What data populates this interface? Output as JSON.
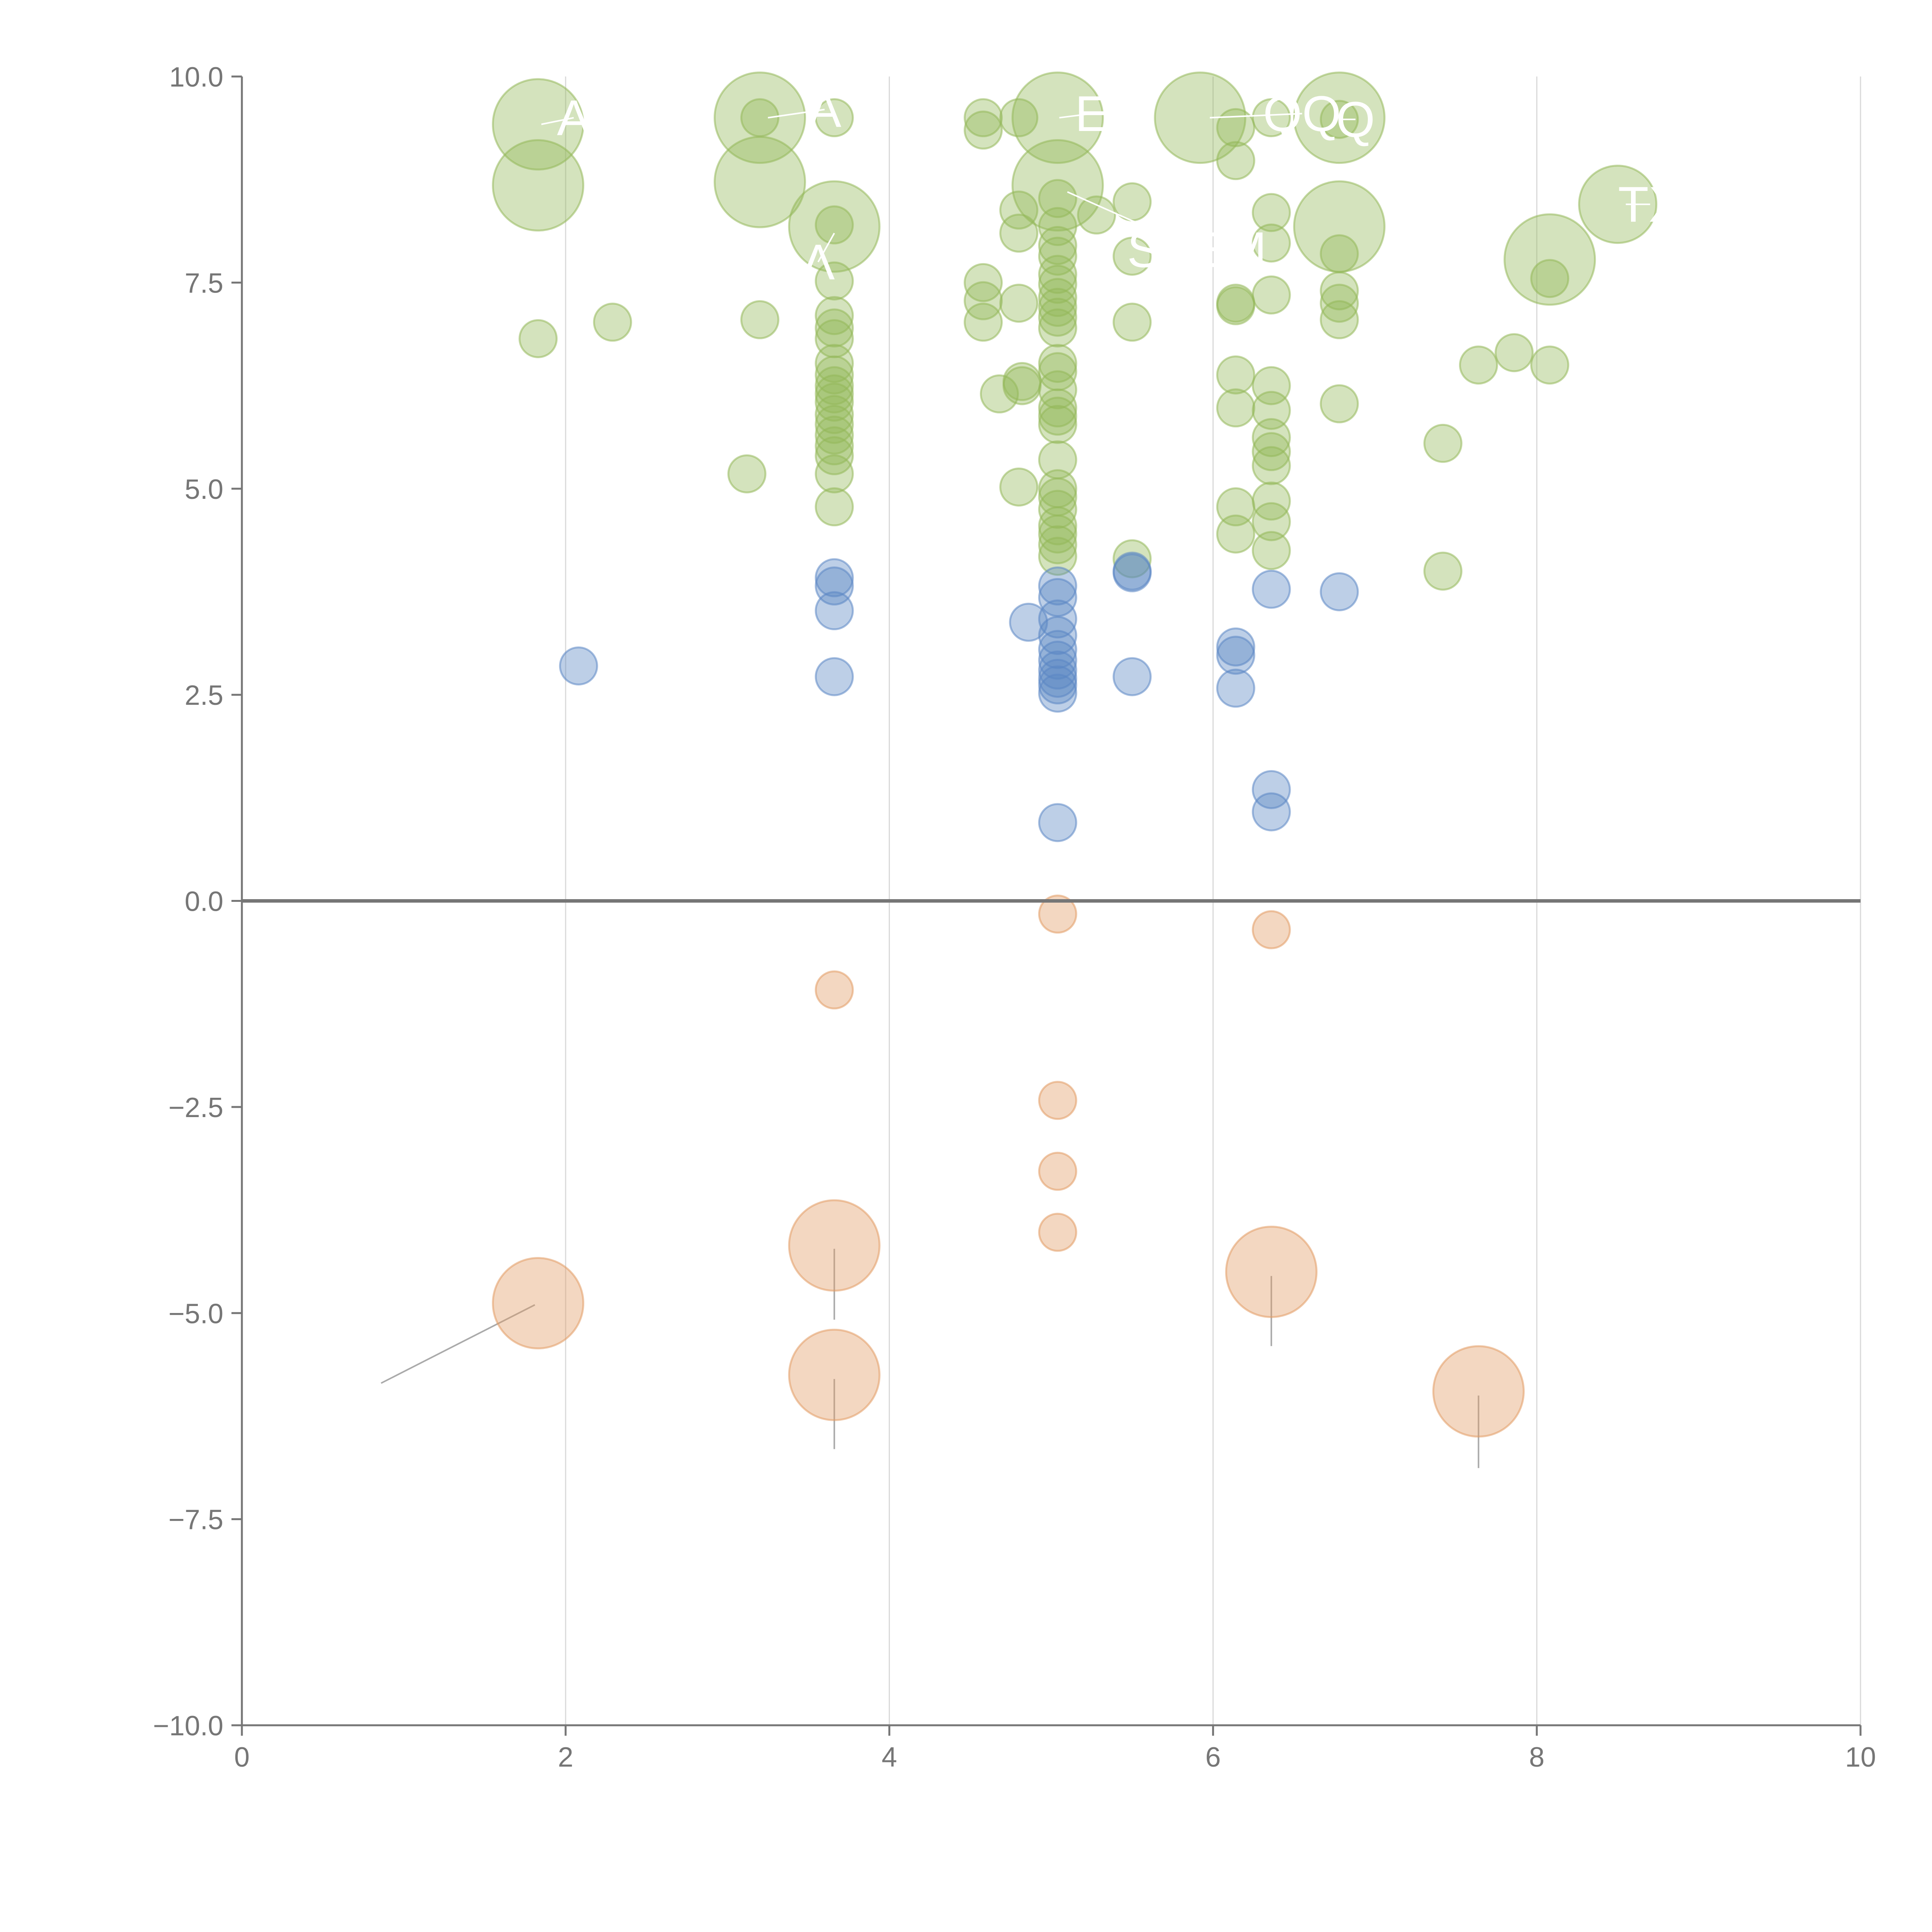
{
  "colors": {
    "green": "#93b85a",
    "blue": "#5b86c4",
    "orange": "#e29a63",
    "axis": "#767676",
    "grid": "#d9d9d9",
    "leader": "#aaaaaa"
  },
  "chart_data": {
    "type": "scatter",
    "title": "",
    "xlabel": "",
    "ylabel": "",
    "xlim": [
      0,
      10
    ],
    "ylim": [
      -10,
      10
    ],
    "x_ticks": [
      0,
      2,
      4,
      6,
      8,
      10
    ],
    "x_tick_labels": [
      "0",
      "2",
      "4",
      "6",
      "8",
      "10"
    ],
    "y_ticks": [
      -10,
      -7.5,
      -5,
      -2.5,
      0,
      2.5,
      5,
      7.5,
      10
    ],
    "y_tick_labels": [
      "−10.0",
      "−7.5",
      "−5.0",
      "−2.5",
      "0.0",
      "2.5",
      "5.0",
      "7.5",
      "10.0"
    ],
    "grid": "vertical",
    "zero_line": 0,
    "legend": "none",
    "series": [
      {
        "name": "green",
        "color_key": "green",
        "points": [
          [
            1.83,
            9.42,
            3
          ],
          [
            1.83,
            8.68,
            3
          ],
          [
            1.83,
            6.82,
            1
          ],
          [
            2.29,
            7.02,
            1
          ],
          [
            3.2,
            9.5,
            3
          ],
          [
            3.2,
            9.5,
            1
          ],
          [
            3.2,
            8.72,
            3
          ],
          [
            3.2,
            7.05,
            1
          ],
          [
            3.12,
            5.18,
            1
          ],
          [
            3.66,
            9.5,
            1
          ],
          [
            3.66,
            8.18,
            3
          ],
          [
            3.66,
            8.2,
            1
          ],
          [
            3.66,
            7.52,
            1
          ],
          [
            3.66,
            7.1,
            1
          ],
          [
            3.66,
            6.95,
            1
          ],
          [
            3.66,
            6.82,
            1
          ],
          [
            3.66,
            6.52,
            1
          ],
          [
            3.66,
            6.38,
            1
          ],
          [
            3.66,
            6.25,
            1
          ],
          [
            3.66,
            6.15,
            1
          ],
          [
            3.66,
            6.05,
            1
          ],
          [
            3.66,
            5.9,
            1
          ],
          [
            3.66,
            5.78,
            1
          ],
          [
            3.66,
            5.65,
            1
          ],
          [
            3.66,
            5.52,
            1
          ],
          [
            3.66,
            5.4,
            1
          ],
          [
            3.66,
            5.18,
            1
          ],
          [
            3.66,
            4.78,
            1
          ],
          [
            4.58,
            9.5,
            1
          ],
          [
            4.58,
            9.35,
            1
          ],
          [
            4.58,
            7.5,
            1
          ],
          [
            4.58,
            7.28,
            1
          ],
          [
            4.58,
            7.02,
            1
          ],
          [
            4.68,
            6.15,
            1
          ],
          [
            4.8,
            9.5,
            1
          ],
          [
            4.8,
            8.38,
            1
          ],
          [
            4.8,
            8.1,
            1
          ],
          [
            4.8,
            7.25,
            1
          ],
          [
            4.82,
            6.3,
            1
          ],
          [
            4.82,
            6.25,
            1
          ],
          [
            4.8,
            5.02,
            1
          ],
          [
            5.04,
            9.5,
            3
          ],
          [
            5.04,
            8.68,
            3
          ],
          [
            5.04,
            8.52,
            1
          ],
          [
            5.04,
            8.18,
            1
          ],
          [
            5.04,
            7.95,
            1
          ],
          [
            5.04,
            7.82,
            1
          ],
          [
            5.04,
            7.6,
            1
          ],
          [
            5.04,
            7.48,
            1
          ],
          [
            5.04,
            7.32,
            1
          ],
          [
            5.04,
            7.2,
            1
          ],
          [
            5.04,
            7.08,
            1
          ],
          [
            5.04,
            6.95,
            1
          ],
          [
            5.04,
            6.52,
            1
          ],
          [
            5.04,
            6.42,
            1
          ],
          [
            5.04,
            6.2,
            1
          ],
          [
            5.04,
            5.98,
            1
          ],
          [
            5.04,
            5.88,
            1
          ],
          [
            5.04,
            5.78,
            1
          ],
          [
            5.04,
            5.35,
            1
          ],
          [
            5.04,
            5.0,
            1
          ],
          [
            5.04,
            4.9,
            1
          ],
          [
            5.04,
            4.75,
            1
          ],
          [
            5.04,
            4.55,
            1
          ],
          [
            5.04,
            4.45,
            1
          ],
          [
            5.04,
            4.32,
            1
          ],
          [
            5.04,
            4.18,
            1
          ],
          [
            5.28,
            8.32,
            1
          ],
          [
            5.5,
            8.48,
            1
          ],
          [
            5.5,
            7.82,
            1
          ],
          [
            5.5,
            7.02,
            1
          ],
          [
            5.5,
            4.15,
            1
          ],
          [
            5.92,
            9.5,
            3
          ],
          [
            6.14,
            9.38,
            1
          ],
          [
            6.14,
            8.98,
            1
          ],
          [
            6.14,
            7.25,
            1
          ],
          [
            6.14,
            7.22,
            1
          ],
          [
            6.14,
            6.38,
            1
          ],
          [
            6.14,
            5.98,
            1
          ],
          [
            6.14,
            4.78,
            1
          ],
          [
            6.14,
            4.45,
            1
          ],
          [
            6.36,
            9.5,
            1
          ],
          [
            6.36,
            8.35,
            1
          ],
          [
            6.36,
            7.98,
            1
          ],
          [
            6.36,
            7.35,
            1
          ],
          [
            6.36,
            6.25,
            1
          ],
          [
            6.36,
            5.95,
            1
          ],
          [
            6.36,
            5.62,
            1
          ],
          [
            6.36,
            5.45,
            1
          ],
          [
            6.36,
            5.28,
            1
          ],
          [
            6.36,
            4.85,
            1
          ],
          [
            6.36,
            4.6,
            1
          ],
          [
            6.36,
            4.25,
            1
          ],
          [
            6.78,
            9.5,
            3
          ],
          [
            6.78,
            9.48,
            1
          ],
          [
            6.78,
            8.18,
            3
          ],
          [
            6.78,
            7.85,
            1
          ],
          [
            6.78,
            7.4,
            1
          ],
          [
            6.78,
            7.25,
            1
          ],
          [
            6.78,
            7.05,
            1
          ],
          [
            6.78,
            6.03,
            1
          ],
          [
            7.42,
            5.55,
            1
          ],
          [
            7.42,
            4.0,
            1
          ],
          [
            7.64,
            6.5,
            1
          ],
          [
            7.86,
            6.65,
            1
          ],
          [
            8.08,
            7.78,
            3
          ],
          [
            8.08,
            7.55,
            1
          ],
          [
            8.08,
            6.5,
            1
          ],
          [
            8.5,
            8.45,
            2
          ]
        ]
      },
      {
        "name": "blue",
        "color_key": "blue",
        "points": [
          [
            2.08,
            2.85,
            1
          ],
          [
            3.66,
            3.92,
            1
          ],
          [
            3.66,
            3.82,
            1
          ],
          [
            3.66,
            3.52,
            1
          ],
          [
            3.66,
            2.72,
            1
          ],
          [
            4.86,
            3.38,
            1
          ],
          [
            5.04,
            3.82,
            1
          ],
          [
            5.04,
            3.68,
            1
          ],
          [
            5.04,
            3.42,
            1
          ],
          [
            5.04,
            3.22,
            1
          ],
          [
            5.04,
            3.05,
            1
          ],
          [
            5.04,
            2.92,
            1
          ],
          [
            5.04,
            2.8,
            1
          ],
          [
            5.04,
            2.7,
            1
          ],
          [
            5.04,
            2.62,
            1
          ],
          [
            5.04,
            2.52,
            1
          ],
          [
            5.04,
            0.95,
            1
          ],
          [
            5.5,
            4.0,
            1
          ],
          [
            5.5,
            3.98,
            1
          ],
          [
            5.5,
            2.72,
            1
          ],
          [
            6.14,
            3.08,
            1
          ],
          [
            6.14,
            2.98,
            1
          ],
          [
            6.14,
            2.58,
            1
          ],
          [
            6.36,
            3.78,
            1
          ],
          [
            6.36,
            1.35,
            1
          ],
          [
            6.36,
            1.08,
            1
          ],
          [
            6.78,
            3.75,
            1
          ]
        ]
      },
      {
        "name": "orange",
        "color_key": "orange",
        "points": [
          [
            1.83,
            -4.88,
            3
          ],
          [
            3.66,
            -1.08,
            1
          ],
          [
            3.66,
            -4.18,
            3
          ],
          [
            3.66,
            -5.75,
            3
          ],
          [
            5.04,
            -0.16,
            1
          ],
          [
            5.04,
            -2.42,
            1
          ],
          [
            5.04,
            -3.28,
            1
          ],
          [
            5.04,
            -4.02,
            1
          ],
          [
            6.36,
            -0.35,
            1
          ],
          [
            6.36,
            -4.5,
            3
          ],
          [
            7.64,
            -5.95,
            3
          ]
        ]
      }
    ],
    "annotations": [
      {
        "text": "A",
        "x": 2.05,
        "y": 9.5,
        "tx": 1.85,
        "ty": 9.42
      },
      {
        "text": "A",
        "x": 3.6,
        "y": 9.6,
        "tx": 3.25,
        "ty": 9.5
      },
      {
        "text": "E",
        "x": 5.25,
        "y": 9.55,
        "tx": 5.05,
        "ty": 9.5
      },
      {
        "text": "QQ",
        "x": 6.55,
        "y": 9.55,
        "tx": 5.98,
        "ty": 9.5
      },
      {
        "text": "Q",
        "x": 6.88,
        "y": 9.48,
        "tx": 6.8,
        "ty": 9.48
      },
      {
        "text": "TX",
        "x": 8.7,
        "y": 8.45,
        "tx": 8.55,
        "ty": 8.45
      },
      {
        "text": "STEM",
        "x": 5.9,
        "y": 7.9,
        "tx": 5.1,
        "ty": 8.6
      },
      {
        "text": "Λ",
        "x": 3.56,
        "y": 7.75,
        "tx": 3.66,
        "ty": 8.1
      }
    ],
    "leaders": [
      {
        "x1": 0.86,
        "y1": -5.85,
        "x2": 1.81,
        "y2": -4.9
      },
      {
        "x1": 3.66,
        "y1": -5.08,
        "x2": 3.66,
        "y2": -4.22
      },
      {
        "x1": 3.66,
        "y1": -6.65,
        "x2": 3.66,
        "y2": -5.8
      },
      {
        "x1": 6.36,
        "y1": -5.4,
        "x2": 6.36,
        "y2": -4.55
      },
      {
        "x1": 7.64,
        "y1": -6.88,
        "x2": 7.64,
        "y2": -6.0
      }
    ]
  }
}
